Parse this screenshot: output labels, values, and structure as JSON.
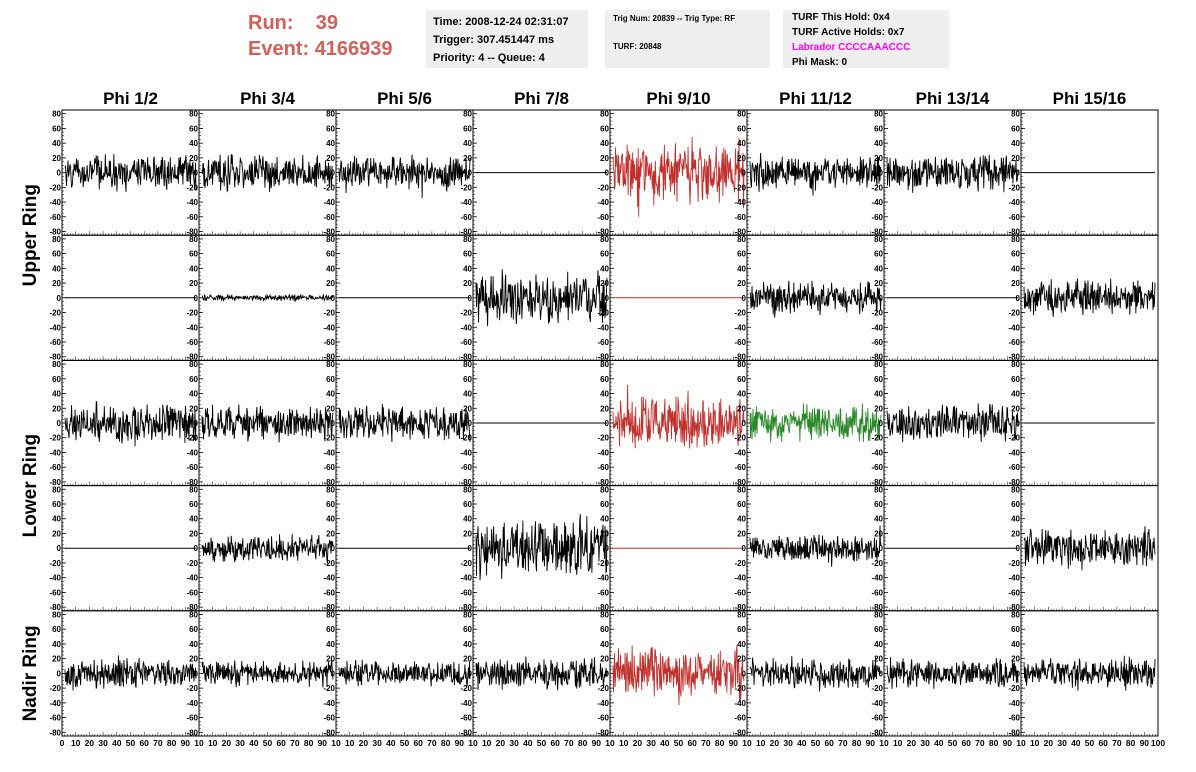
{
  "header": {
    "run_label": "Run:",
    "run_value": "39",
    "event_label": "Event:",
    "event_value": "4166939",
    "time": "Time: 2008-12-24 02:31:07",
    "trigger": "Trigger: 307.451447 ms",
    "priority_queue": "Priority: 4 -- Queue: 4",
    "trig_num_type": "Trig Num: 20839 -- Trig Type: RF",
    "turf": "TURF: 20848",
    "turf_this_hold": "TURF This Hold: 0x4",
    "turf_active_holds": "TURF Active Holds: 0x7",
    "labrador": "Labrador CCCCAAACCC",
    "phi_mask": "Phi Mask: 0"
  },
  "colors": {
    "default_trace": "#000000",
    "triggered_trace": "#c0302c",
    "green_trace": "#2a8a2a",
    "title_text": "#d0605a",
    "labrador_text": "#ff00ff",
    "info_box_bg": "#efefef"
  },
  "chart_data": {
    "type": "line",
    "columns": [
      "Phi 1/2",
      "Phi 3/4",
      "Phi 5/6",
      "Phi 7/8",
      "Phi 9/10",
      "Phi 11/12",
      "Phi 13/14",
      "Phi 15/16"
    ],
    "ring_labels": [
      {
        "label": "Upper Ring",
        "rows": [
          0,
          1
        ]
      },
      {
        "label": "Lower Ring",
        "rows": [
          2,
          3
        ]
      },
      {
        "label": "Nadir Ring",
        "rows": [
          4
        ]
      }
    ],
    "ylim": [
      -85,
      85
    ],
    "y_ticks": [
      80,
      60,
      40,
      20,
      0,
      -20,
      -40,
      -60,
      -80
    ],
    "xlim": [
      0,
      100
    ],
    "x_ticks": [
      0,
      10,
      20,
      30,
      40,
      50,
      60,
      70,
      80,
      90,
      100
    ],
    "x_tick_labels_first": [
      "0",
      "10",
      "20",
      "30",
      "40",
      "50",
      "60",
      "70",
      "80",
      "90",
      "10"
    ],
    "x_tick_labels_middle": [
      "10",
      "20",
      "30",
      "40",
      "50",
      "60",
      "70",
      "80",
      "90",
      "10"
    ],
    "x_tick_labels_last": [
      "10",
      "20",
      "30",
      "40",
      "50",
      "60",
      "70",
      "80",
      "90",
      "100"
    ],
    "grid": false,
    "panels": [
      [
        {
          "amplitude": 28,
          "offset": 0,
          "color": "black"
        },
        {
          "amplitude": 28,
          "offset": 0,
          "color": "black"
        },
        {
          "amplitude": 28,
          "offset": 0,
          "color": "black"
        },
        {
          "amplitude": 0,
          "offset": 0,
          "color": "black"
        },
        {
          "amplitude": 50,
          "offset": 0,
          "color": "red"
        },
        {
          "amplitude": 28,
          "offset": 0,
          "color": "black"
        },
        {
          "amplitude": 28,
          "offset": 0,
          "color": "black"
        },
        {
          "amplitude": 0,
          "offset": 0,
          "color": "black"
        }
      ],
      [
        {
          "amplitude": 0,
          "offset": 0,
          "color": "black"
        },
        {
          "amplitude": 5,
          "offset": 0,
          "color": "black"
        },
        {
          "amplitude": 0,
          "offset": 0,
          "color": "black"
        },
        {
          "amplitude": 42,
          "offset": 0,
          "color": "black"
        },
        {
          "amplitude": 0,
          "offset": 0,
          "color": "red"
        },
        {
          "amplitude": 25,
          "offset": 0,
          "color": "black"
        },
        {
          "amplitude": 0,
          "offset": 0,
          "color": "black"
        },
        {
          "amplitude": 28,
          "offset": 0,
          "color": "black"
        }
      ],
      [
        {
          "amplitude": 30,
          "offset": 0,
          "color": "black"
        },
        {
          "amplitude": 28,
          "offset": 0,
          "color": "black"
        },
        {
          "amplitude": 28,
          "offset": 0,
          "color": "black"
        },
        {
          "amplitude": 0,
          "offset": 0,
          "color": "black"
        },
        {
          "amplitude": 45,
          "offset": 0,
          "color": "red"
        },
        {
          "amplitude": 30,
          "offset": 0,
          "color": "green"
        },
        {
          "amplitude": 28,
          "offset": 0,
          "color": "black"
        },
        {
          "amplitude": 0,
          "offset": 0,
          "color": "black"
        }
      ],
      [
        {
          "amplitude": 0,
          "offset": 0,
          "color": "black"
        },
        {
          "amplitude": 22,
          "offset": 0,
          "color": "black"
        },
        {
          "amplitude": 0,
          "offset": 0,
          "color": "black"
        },
        {
          "amplitude": 45,
          "offset": 0,
          "color": "black"
        },
        {
          "amplitude": 0,
          "offset": 0,
          "color": "red"
        },
        {
          "amplitude": 22,
          "offset": 0,
          "color": "black"
        },
        {
          "amplitude": 0,
          "offset": 0,
          "color": "black"
        },
        {
          "amplitude": 32,
          "offset": 0,
          "color": "black"
        }
      ],
      [
        {
          "amplitude": 25,
          "offset": 0,
          "color": "black"
        },
        {
          "amplitude": 20,
          "offset": 0,
          "color": "black"
        },
        {
          "amplitude": 20,
          "offset": 0,
          "color": "black"
        },
        {
          "amplitude": 25,
          "offset": 0,
          "color": "black"
        },
        {
          "amplitude": 40,
          "offset": 0,
          "color": "red"
        },
        {
          "amplitude": 25,
          "offset": 0,
          "color": "black"
        },
        {
          "amplitude": 22,
          "offset": 0,
          "color": "black"
        },
        {
          "amplitude": 25,
          "offset": 0,
          "color": "black"
        }
      ]
    ]
  }
}
